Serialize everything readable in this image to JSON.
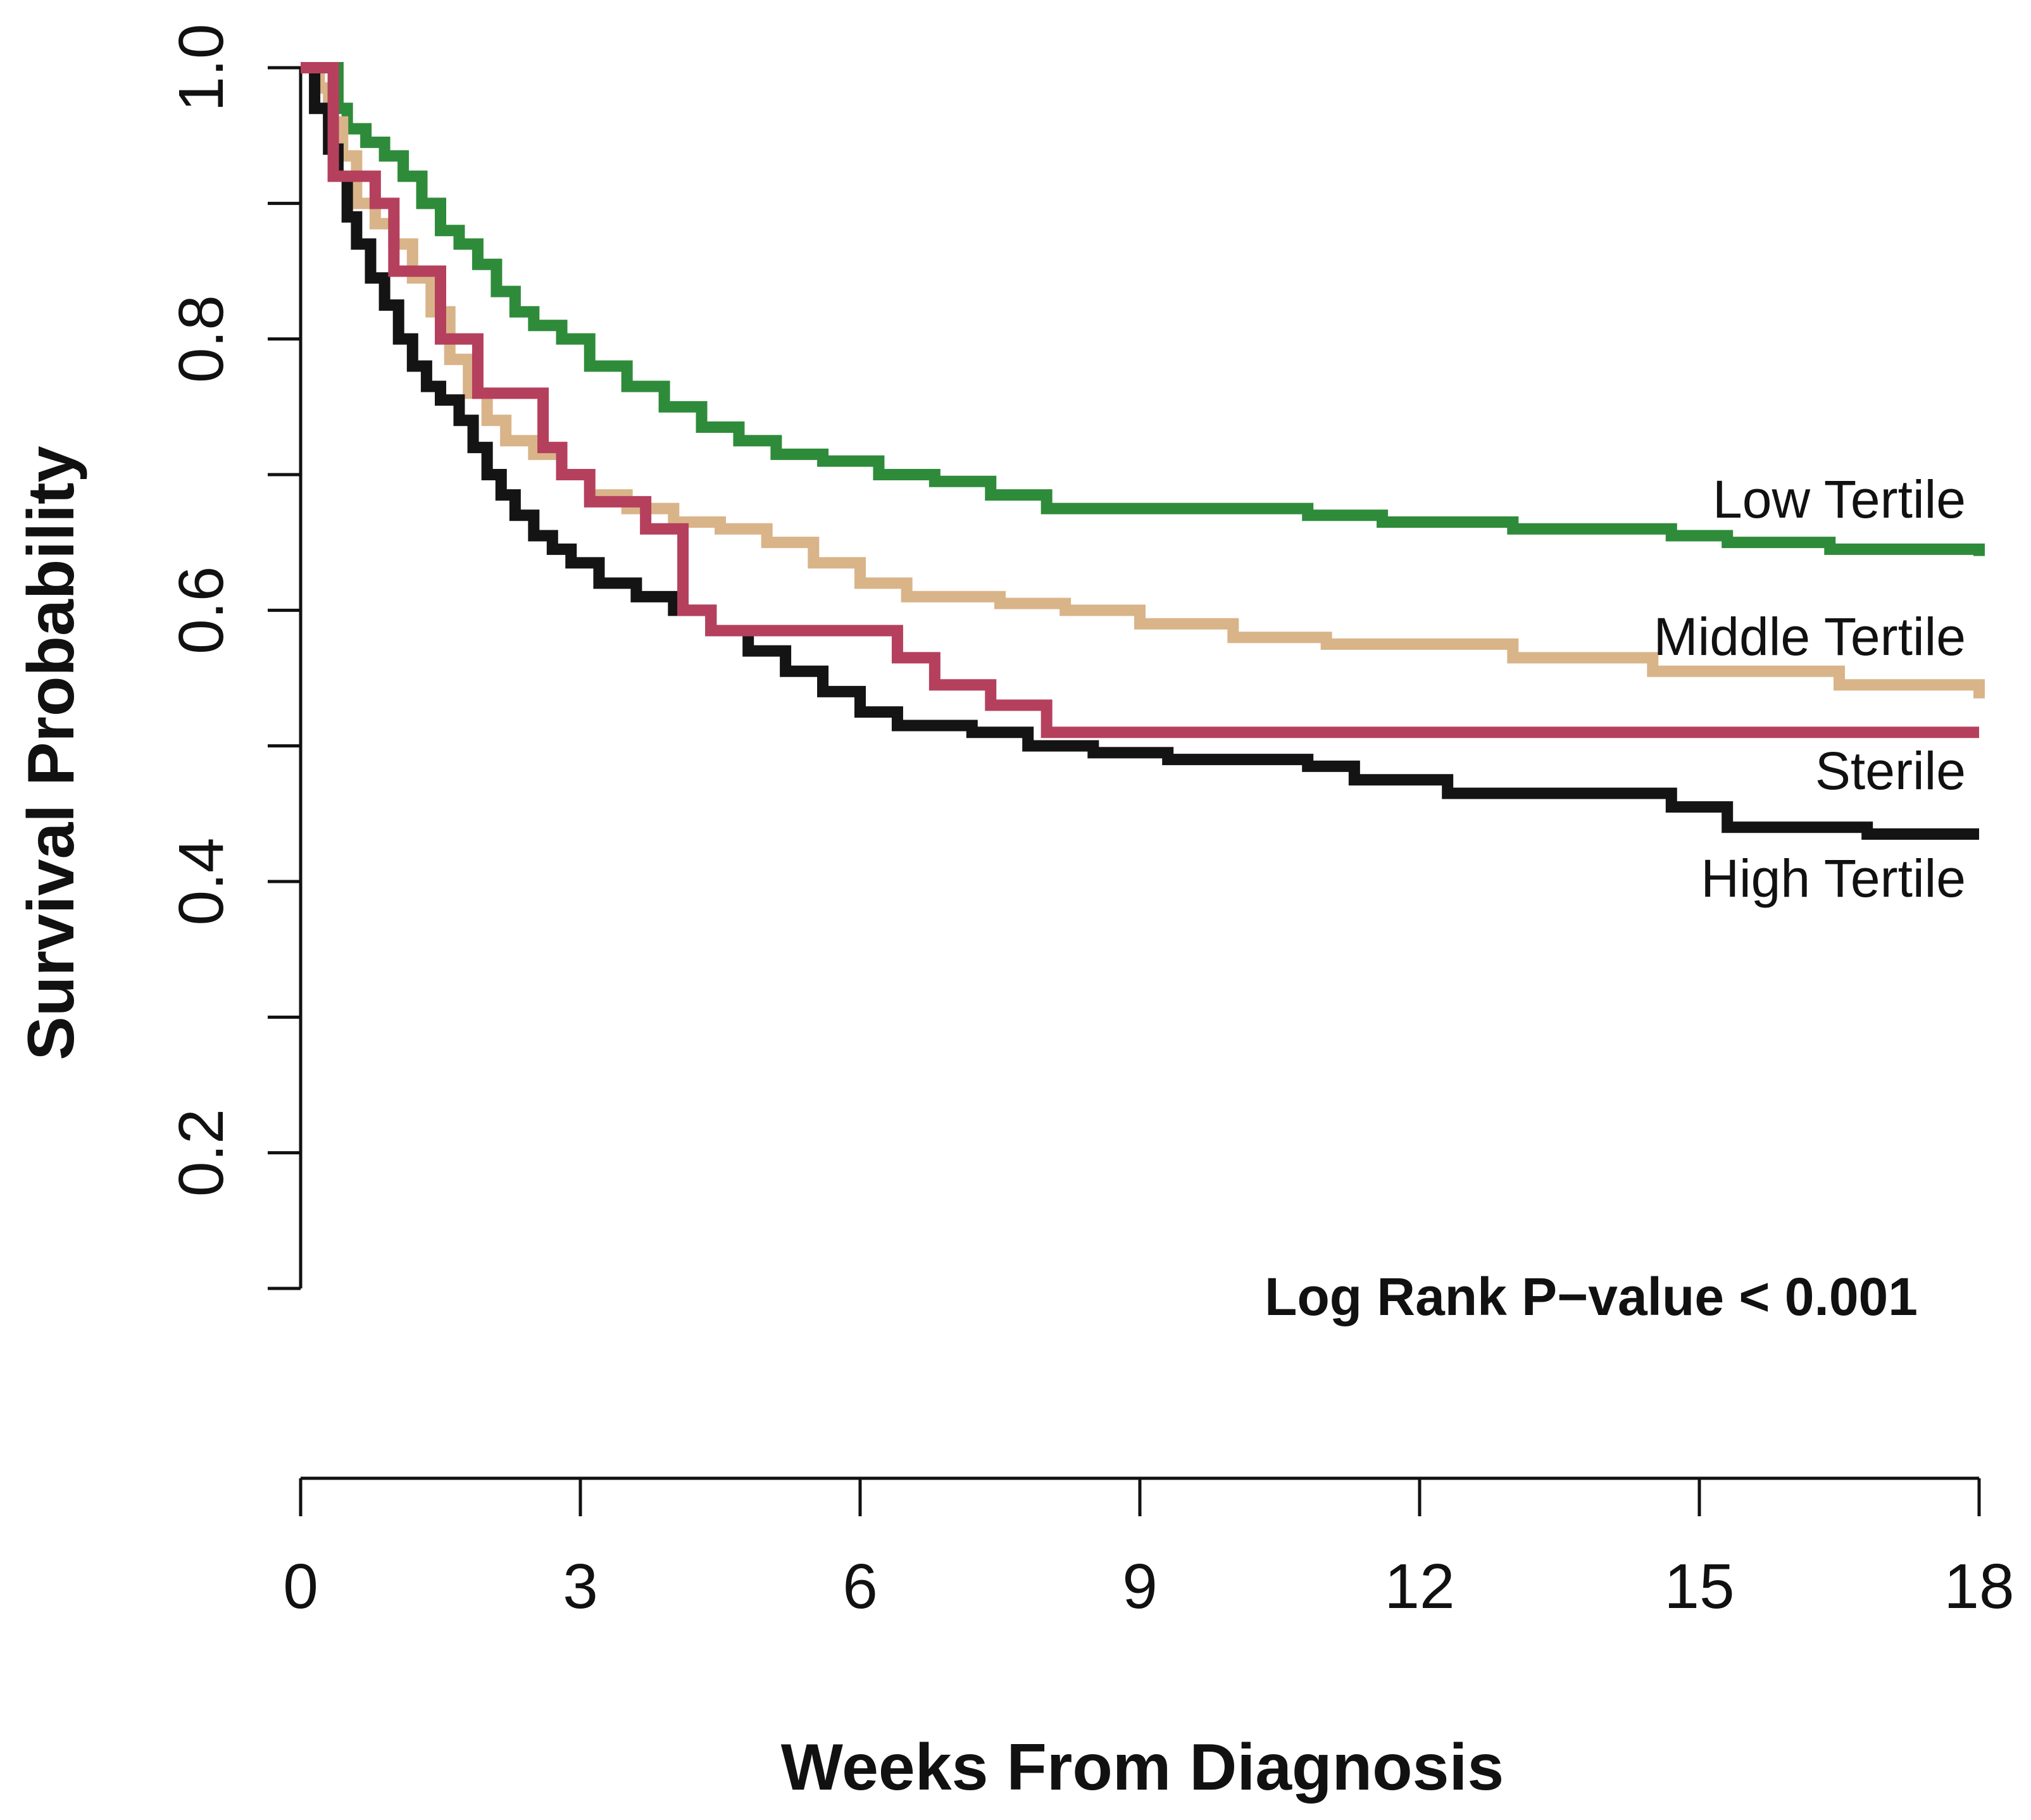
{
  "chart_data": {
    "type": "line",
    "title": "",
    "xlabel": "Weeks From Diagnosis",
    "ylabel": "Survival Probability",
    "xlim": [
      0,
      18
    ],
    "ylim": [
      0.1,
      1.0
    ],
    "xticks": [
      0,
      3,
      6,
      9,
      12,
      15,
      18
    ],
    "xtick_labels": [
      "0",
      "3",
      "6",
      "9",
      "12",
      "15",
      "18"
    ],
    "yticks": [
      0.1,
      0.2,
      0.3,
      0.4,
      0.5,
      0.6,
      0.7,
      0.8,
      0.9,
      1.0
    ],
    "ytick_labels": [
      "0.2",
      "0.4",
      "0.6",
      "0.8",
      "1.0"
    ],
    "ytick_label_values": [
      0.2,
      0.4,
      0.6,
      0.8,
      1.0
    ],
    "grid": false,
    "annotation": "Log Rank P−value < 0.001",
    "series": [
      {
        "name": "Low Tertile",
        "label": "Low Tertile",
        "color": "#2e8b3a",
        "x": [
          0,
          0.4,
          0.5,
          0.7,
          0.9,
          1.1,
          1.3,
          1.5,
          1.7,
          1.9,
          2.1,
          2.3,
          2.5,
          2.8,
          3.1,
          3.5,
          3.9,
          4.3,
          4.7,
          5.1,
          5.6,
          6.2,
          6.8,
          7.4,
          8.0,
          9.0,
          10.8,
          11.6,
          12.2,
          13.0,
          14.7,
          15.3,
          16.4,
          18
        ],
        "y": [
          1.0,
          0.97,
          0.955,
          0.945,
          0.935,
          0.92,
          0.9,
          0.88,
          0.87,
          0.855,
          0.835,
          0.82,
          0.81,
          0.8,
          0.78,
          0.765,
          0.75,
          0.735,
          0.725,
          0.715,
          0.71,
          0.7,
          0.695,
          0.685,
          0.675,
          0.675,
          0.67,
          0.665,
          0.665,
          0.66,
          0.655,
          0.65,
          0.645,
          0.64
        ]
      },
      {
        "name": "Middle Tertile",
        "label": "Middle Tertile",
        "color": "#d9b489",
        "x": [
          0,
          0.2,
          0.3,
          0.45,
          0.6,
          0.8,
          1.0,
          1.2,
          1.4,
          1.6,
          1.8,
          2.0,
          2.2,
          2.5,
          2.8,
          3.1,
          3.5,
          4.0,
          4.5,
          5.0,
          5.5,
          6.0,
          6.5,
          7.5,
          8.2,
          9.0,
          10.0,
          11.0,
          13.0,
          14.5,
          16.5,
          18
        ],
        "y": [
          1.0,
          0.985,
          0.96,
          0.935,
          0.9,
          0.885,
          0.87,
          0.845,
          0.82,
          0.785,
          0.76,
          0.74,
          0.725,
          0.715,
          0.7,
          0.685,
          0.675,
          0.665,
          0.66,
          0.65,
          0.635,
          0.62,
          0.61,
          0.605,
          0.6,
          0.59,
          0.58,
          0.575,
          0.565,
          0.555,
          0.545,
          0.535
        ]
      },
      {
        "name": "Sterile",
        "label": "Sterile",
        "color": "#b5405d",
        "x": [
          0,
          0.35,
          0.8,
          1.0,
          1.5,
          1.9,
          2.6,
          2.8,
          3.1,
          3.7,
          4.1,
          4.4,
          6.4,
          6.8,
          7.4,
          8.0,
          18
        ],
        "y": [
          1.0,
          0.92,
          0.9,
          0.85,
          0.8,
          0.76,
          0.72,
          0.7,
          0.68,
          0.66,
          0.6,
          0.585,
          0.565,
          0.545,
          0.53,
          0.51,
          0.51
        ]
      },
      {
        "name": "High Tertile",
        "label": "High Tertile",
        "color": "#141414",
        "x": [
          0,
          0.15,
          0.3,
          0.4,
          0.5,
          0.6,
          0.75,
          0.9,
          1.05,
          1.2,
          1.35,
          1.5,
          1.7,
          1.85,
          2.0,
          2.15,
          2.3,
          2.5,
          2.7,
          2.9,
          3.2,
          3.6,
          4.0,
          4.4,
          4.8,
          5.2,
          5.6,
          6.0,
          6.4,
          7.2,
          7.8,
          8.5,
          9.3,
          10.8,
          11.3,
          12.3,
          14.7,
          15.3,
          16.8,
          18
        ],
        "y": [
          1.0,
          0.97,
          0.94,
          0.92,
          0.89,
          0.87,
          0.845,
          0.825,
          0.8,
          0.78,
          0.765,
          0.755,
          0.74,
          0.72,
          0.7,
          0.685,
          0.67,
          0.655,
          0.645,
          0.635,
          0.62,
          0.61,
          0.6,
          0.585,
          0.57,
          0.555,
          0.54,
          0.525,
          0.515,
          0.51,
          0.5,
          0.495,
          0.49,
          0.485,
          0.475,
          0.465,
          0.455,
          0.44,
          0.435,
          0.435
        ]
      }
    ]
  }
}
